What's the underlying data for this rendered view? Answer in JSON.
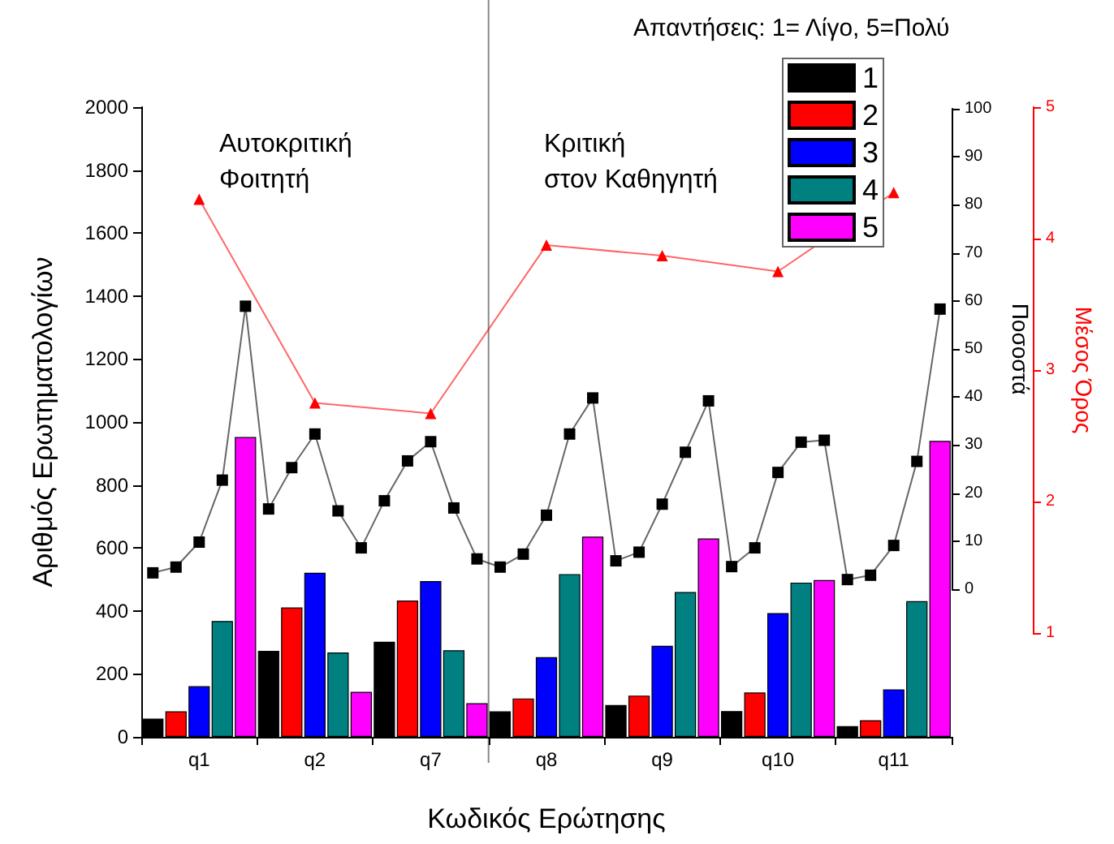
{
  "chart_data": {
    "type": "bar",
    "xlabel": "Κωδικός Ερώτησης",
    "ylabel": "Αριθμός Ερωτηματολογίων",
    "y2label": "Ποσοστά",
    "y3label": "Μέσος Όρος",
    "legend_title": "Απαντήσεις: 1= Λίγο, 5=Πολύ",
    "legend": "top right",
    "grid": false,
    "annotations": [
      "Αυτοκριτική\nΦοιτητή",
      "Κριτική\nστον Καθηγητή"
    ],
    "categories": [
      null,
      null,
      "q1",
      null,
      null,
      null,
      null,
      "q2",
      null,
      null,
      null,
      null,
      "q7",
      null,
      null,
      null,
      null,
      "q8",
      null,
      null,
      null,
      null,
      "q9",
      null,
      null,
      null,
      null,
      "q10",
      null,
      null,
      null,
      null,
      "q11",
      null,
      null
    ],
    "ylim": [
      0,
      2000
    ],
    "yticks": [
      0,
      200,
      400,
      600,
      800,
      1000,
      1200,
      1400,
      1600,
      1800,
      2000
    ],
    "y2lim": [
      0,
      100
    ],
    "y2ticks": [
      0,
      10,
      20,
      30,
      40,
      50,
      60,
      70,
      80,
      90,
      100
    ],
    "y3lim": [
      1,
      5
    ],
    "y3ticks": [
      1,
      2,
      3,
      4,
      5
    ],
    "series": [
      {
        "name": "1",
        "color": "#000000",
        "values": [
          58,
          null,
          null,
          null,
          null,
          273,
          null,
          null,
          null,
          null,
          302,
          null,
          null,
          null,
          null,
          81,
          null,
          null,
          null,
          null,
          101,
          null,
          null,
          null,
          null,
          82,
          null,
          null,
          null,
          null,
          34,
          null,
          null,
          null,
          null
        ]
      },
      {
        "name": "2",
        "color": "#ff0000",
        "values": [
          null,
          81,
          null,
          null,
          null,
          null,
          411,
          null,
          null,
          null,
          null,
          433,
          null,
          null,
          null,
          null,
          122,
          null,
          null,
          null,
          null,
          131,
          null,
          null,
          null,
          null,
          141,
          null,
          null,
          null,
          null,
          53,
          null,
          null,
          null
        ]
      },
      {
        "name": "3",
        "color": "#0000ff",
        "values": [
          null,
          null,
          161,
          null,
          null,
          null,
          null,
          521,
          null,
          null,
          null,
          null,
          495,
          null,
          null,
          null,
          null,
          253,
          null,
          null,
          null,
          null,
          289,
          null,
          null,
          null,
          null,
          393,
          null,
          null,
          null,
          null,
          151,
          null,
          null
        ]
      },
      {
        "name": "4",
        "color": "#008080",
        "values": [
          null,
          null,
          null,
          368,
          null,
          null,
          null,
          null,
          268,
          null,
          null,
          null,
          null,
          275,
          null,
          null,
          null,
          null,
          517,
          null,
          null,
          null,
          null,
          460,
          null,
          null,
          null,
          null,
          490,
          null,
          null,
          null,
          null,
          431,
          null
        ]
      },
      {
        "name": "5",
        "color": "#ff00ff",
        "values": [
          null,
          null,
          null,
          null,
          952,
          null,
          null,
          null,
          null,
          143,
          null,
          null,
          null,
          null,
          107,
          null,
          null,
          null,
          null,
          636,
          null,
          null,
          null,
          null,
          630,
          null,
          null,
          null,
          null,
          498,
          null,
          null,
          null,
          null,
          940
        ]
      },
      {
        "type": "line",
        "axis": "y2",
        "color": "#000000",
        "marker": "square",
        "values": [
          3.4,
          4.6,
          9.8,
          22.7,
          58.9,
          16.7,
          25.3,
          32.3,
          16.3,
          8.6,
          18.4,
          26.7,
          30.7,
          16.9,
          6.3,
          4.6,
          7.3,
          15.4,
          32.3,
          39.8,
          5.9,
          7.7,
          17.7,
          28.5,
          39.2,
          4.7,
          8.6,
          24.3,
          30.6,
          31.0,
          2.0,
          2.9,
          9.1,
          26.6,
          58.3
        ]
      },
      {
        "type": "line",
        "axis": "y3",
        "color": "#ff0000",
        "marker": "triangle",
        "x": [
          "q1",
          "q2",
          "q7",
          "q8",
          "q9",
          "q10",
          "q11"
        ],
        "values": [
          4.3,
          2.75,
          2.67,
          3.95,
          3.87,
          3.75,
          4.35
        ]
      }
    ]
  }
}
